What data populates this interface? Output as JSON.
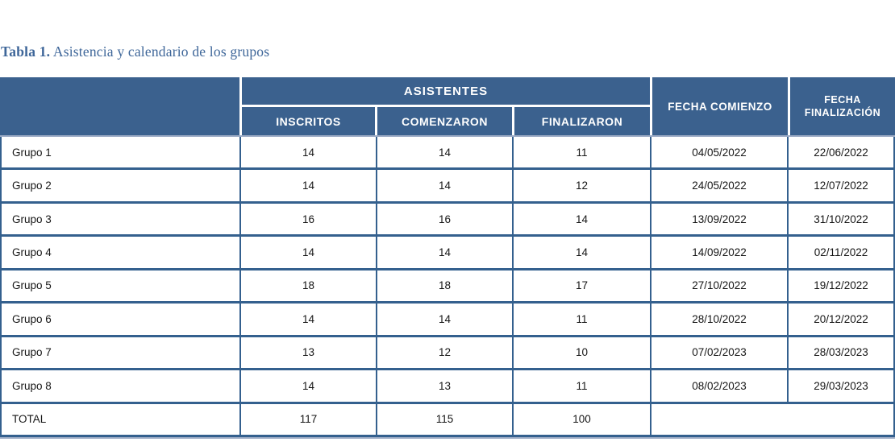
{
  "page": {
    "caption_bold": "Tabla 1.",
    "caption_rest": " Asistencia y calendario de los grupos"
  },
  "colors": {
    "header_bg": "#3b618e",
    "border_blue": "#34608e",
    "accent_light_line": "#9dacc6",
    "caption_blue": "#3e6699"
  },
  "table": {
    "header": {
      "asistentes": "ASISTENTES",
      "inscritos": "INSCRITOS",
      "comenzaron": "COMENZARON",
      "finalizaron": "FINALIZARON",
      "fecha_comienzo": "FECHA COMIENZO",
      "fecha_finalizacion": "FECHA FINALIZACIÓN"
    },
    "rows": [
      {
        "name": "Grupo 1",
        "inscritos": "14",
        "comenzaron": "14",
        "finalizaron": "11",
        "fecha_comienzo": "04/05/2022",
        "fecha_finalizacion": "22/06/2022"
      },
      {
        "name": "Grupo 2",
        "inscritos": "14",
        "comenzaron": "14",
        "finalizaron": "12",
        "fecha_comienzo": "24/05/2022",
        "fecha_finalizacion": "12/07/2022"
      },
      {
        "name": "Grupo 3",
        "inscritos": "16",
        "comenzaron": "16",
        "finalizaron": "14",
        "fecha_comienzo": "13/09/2022",
        "fecha_finalizacion": "31/10/2022"
      },
      {
        "name": "Grupo 4",
        "inscritos": "14",
        "comenzaron": "14",
        "finalizaron": "14",
        "fecha_comienzo": "14/09/2022",
        "fecha_finalizacion": "02/11/2022"
      },
      {
        "name": "Grupo 5",
        "inscritos": "18",
        "comenzaron": "18",
        "finalizaron": "17",
        "fecha_comienzo": "27/10/2022",
        "fecha_finalizacion": "19/12/2022"
      },
      {
        "name": "Grupo 6",
        "inscritos": "14",
        "comenzaron": "14",
        "finalizaron": "11",
        "fecha_comienzo": "28/10/2022",
        "fecha_finalizacion": "20/12/2022"
      },
      {
        "name": "Grupo 7",
        "inscritos": "13",
        "comenzaron": "12",
        "finalizaron": "10",
        "fecha_comienzo": "07/02/2023",
        "fecha_finalizacion": "28/03/2023"
      },
      {
        "name": "Grupo 8",
        "inscritos": "14",
        "comenzaron": "13",
        "finalizaron": "11",
        "fecha_comienzo": "08/02/2023",
        "fecha_finalizacion": "29/03/2023"
      }
    ],
    "total": {
      "label": "TOTAL",
      "inscritos": "117",
      "comenzaron": "115",
      "finalizaron": "100",
      "fecha": ""
    }
  }
}
